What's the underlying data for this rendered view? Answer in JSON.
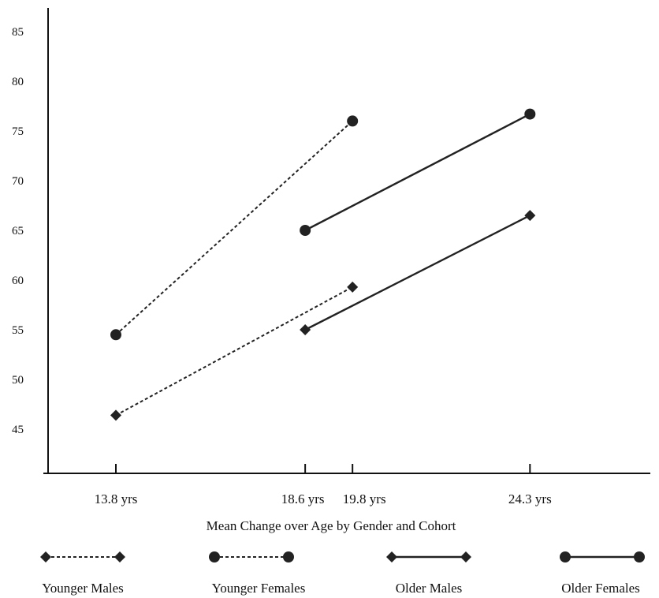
{
  "chart_data": {
    "type": "line",
    "title": "",
    "xlabel": "Mean Change over Age by Gender and Cohort",
    "ylabel": "",
    "ylim": [
      40,
      88
    ],
    "yticks": [
      45,
      50,
      55,
      60,
      65,
      70,
      75,
      80,
      85
    ],
    "x_values": [
      13.8,
      18.6,
      19.8,
      24.3
    ],
    "x_tick_labels": [
      "13.8 yrs",
      "18.6 yrs",
      "19.8 yrs",
      "24.3 yrs"
    ],
    "grid": false,
    "legend_position": "bottom",
    "series": [
      {
        "name": "Younger Males",
        "x": [
          13.8,
          19.8
        ],
        "values": [
          46.4,
          59.3
        ],
        "marker": "diamond",
        "line": "dashed",
        "color": "#222222"
      },
      {
        "name": "Younger Females",
        "x": [
          13.8,
          19.8
        ],
        "values": [
          54.5,
          76.0
        ],
        "marker": "circle",
        "line": "dashed",
        "color": "#222222"
      },
      {
        "name": "Older Males",
        "x": [
          18.6,
          24.3
        ],
        "values": [
          55.0,
          66.5
        ],
        "marker": "diamond",
        "line": "solid",
        "color": "#222222"
      },
      {
        "name": "Older Females",
        "x": [
          18.6,
          24.3
        ],
        "values": [
          65.0,
          76.7
        ],
        "marker": "circle",
        "line": "solid",
        "color": "#222222"
      }
    ]
  }
}
